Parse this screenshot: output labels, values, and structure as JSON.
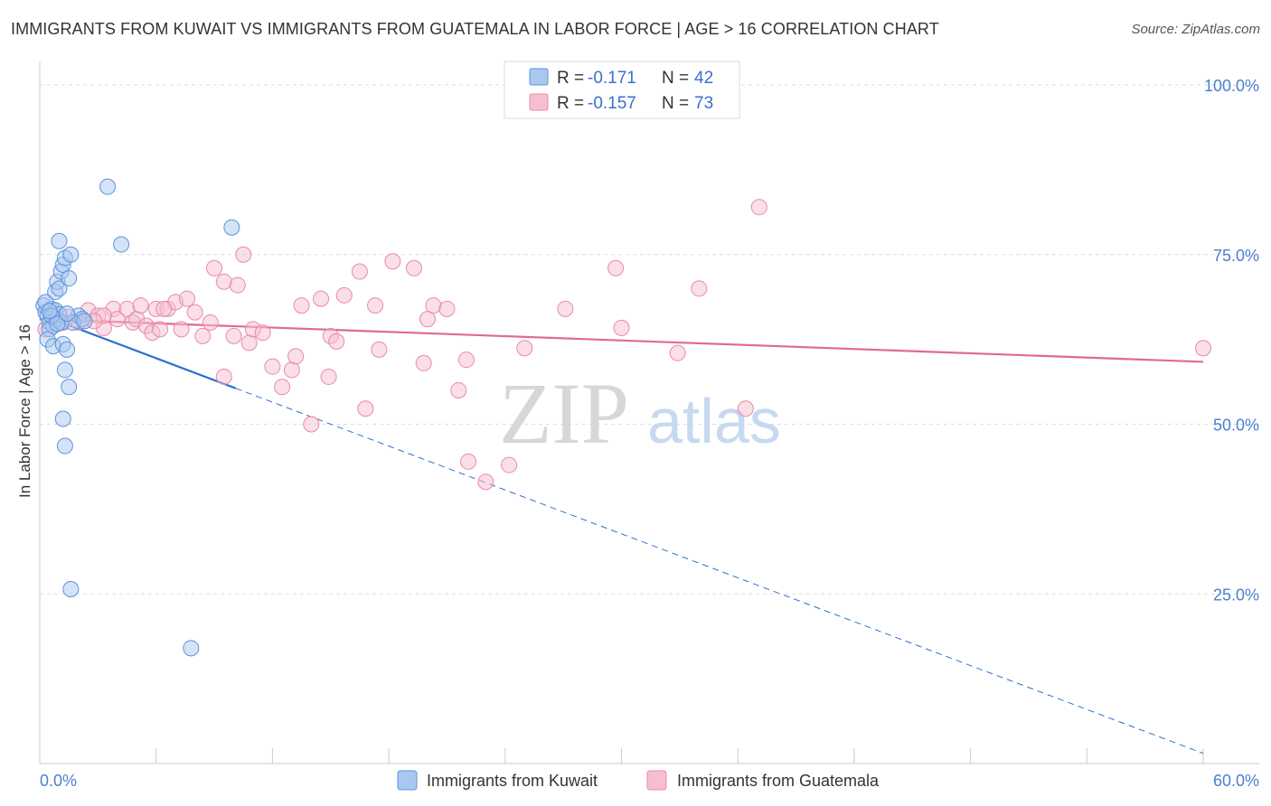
{
  "title": "IMMIGRANTS FROM KUWAIT VS IMMIGRANTS FROM GUATEMALA IN LABOR FORCE | AGE > 16 CORRELATION CHART",
  "source": "Source: ZipAtlas.com",
  "watermark": {
    "zip": "ZIP",
    "atlas": "atlas"
  },
  "colors": {
    "kuwait_fill": "#a9c8f0",
    "kuwait_stroke": "#5b93dc",
    "kuwait_line": "#2e6fd1",
    "guatemala_fill": "#f6bfd0",
    "guatemala_stroke": "#e88aa8",
    "guatemala_line": "#e06a93",
    "tick_text": "#4a7fcf",
    "grid": "#dddddd"
  },
  "legend": {
    "rows": [
      {
        "r_label": "R =",
        "r_value": "-0.171",
        "n_label": "N =",
        "n_value": "42"
      },
      {
        "r_label": "R =",
        "r_value": "-0.157",
        "n_label": "N =",
        "n_value": "73"
      }
    ]
  },
  "chart_data": {
    "type": "scatter",
    "title": "IMMIGRANTS FROM KUWAIT VS IMMIGRANTS FROM GUATEMALA IN LABOR FORCE | AGE > 16 CORRELATION CHART",
    "xlabel": "",
    "ylabel": "In Labor Force | Age > 16",
    "xlim": [
      0,
      60
    ],
    "ylim": [
      0,
      102
    ],
    "x_tick_labels": [
      "0.0%",
      "60.0%"
    ],
    "y_ticks": [
      25,
      50,
      75,
      100
    ],
    "y_tick_labels": [
      "25.0%",
      "50.0%",
      "75.0%",
      "100.0%"
    ],
    "series": [
      {
        "name": "Immigrants from Kuwait",
        "r": -0.171,
        "n": 42,
        "trend": {
          "x0": 0.2,
          "y0": 66.0,
          "x1": 10.1,
          "y1": 55.3,
          "dash_x1": 60.0,
          "dash_y1": 1.5
        },
        "points": [
          [
            0.2,
            67.5
          ],
          [
            0.3,
            66.5
          ],
          [
            0.4,
            66.0
          ],
          [
            0.5,
            65.0
          ],
          [
            0.6,
            67.0
          ],
          [
            0.7,
            64.5
          ],
          [
            0.8,
            66.8
          ],
          [
            0.3,
            68.0
          ],
          [
            0.5,
            64.0
          ],
          [
            0.4,
            62.5
          ],
          [
            0.9,
            65.5
          ],
          [
            1.0,
            66.2
          ],
          [
            0.8,
            69.5
          ],
          [
            0.9,
            71.0
          ],
          [
            1.0,
            70.0
          ],
          [
            1.1,
            72.5
          ],
          [
            1.0,
            77.0
          ],
          [
            1.2,
            73.5
          ],
          [
            1.3,
            74.5
          ],
          [
            1.5,
            71.5
          ],
          [
            1.6,
            75.0
          ],
          [
            0.7,
            61.5
          ],
          [
            1.2,
            61.8
          ],
          [
            1.3,
            58.0
          ],
          [
            1.4,
            61.0
          ],
          [
            1.5,
            55.5
          ],
          [
            1.2,
            50.8
          ],
          [
            1.3,
            46.8
          ],
          [
            1.6,
            25.7
          ],
          [
            2.0,
            66.0
          ],
          [
            2.2,
            65.5
          ],
          [
            3.5,
            85.0
          ],
          [
            4.2,
            76.5
          ],
          [
            9.9,
            79.0
          ],
          [
            7.8,
            17.0
          ],
          [
            1.7,
            65.0
          ],
          [
            1.1,
            65.0
          ],
          [
            0.6,
            66.0
          ],
          [
            0.9,
            64.8
          ],
          [
            1.4,
            66.3
          ],
          [
            0.5,
            66.7
          ],
          [
            2.3,
            65.2
          ]
        ]
      },
      {
        "name": "Immigrants from Guatemala",
        "r": -0.157,
        "n": 73,
        "trend": {
          "x0": 0.0,
          "y0": 65.5,
          "x1": 60.0,
          "y1": 59.2
        },
        "points": [
          [
            0.3,
            64.0
          ],
          [
            0.5,
            65.0
          ],
          [
            0.8,
            65.5
          ],
          [
            1.2,
            65.0
          ],
          [
            1.5,
            65.8
          ],
          [
            2.0,
            65.0
          ],
          [
            2.5,
            66.8
          ],
          [
            3.0,
            66.0
          ],
          [
            3.3,
            64.2
          ],
          [
            3.8,
            67.0
          ],
          [
            4.0,
            65.5
          ],
          [
            4.5,
            67.0
          ],
          [
            4.8,
            65.0
          ],
          [
            5.0,
            65.5
          ],
          [
            5.2,
            67.5
          ],
          [
            5.5,
            64.5
          ],
          [
            5.8,
            63.5
          ],
          [
            6.0,
            67.0
          ],
          [
            6.2,
            64.0
          ],
          [
            6.6,
            67.0
          ],
          [
            7.0,
            68.0
          ],
          [
            7.3,
            64.0
          ],
          [
            7.6,
            68.5
          ],
          [
            8.0,
            66.5
          ],
          [
            8.4,
            63.0
          ],
          [
            8.8,
            65.0
          ],
          [
            9.0,
            73.0
          ],
          [
            9.5,
            71.0
          ],
          [
            10.0,
            63.0
          ],
          [
            10.2,
            70.5
          ],
          [
            10.5,
            75.0
          ],
          [
            10.8,
            62.0
          ],
          [
            11.0,
            64.0
          ],
          [
            11.5,
            63.5
          ],
          [
            12.0,
            58.5
          ],
          [
            12.5,
            55.5
          ],
          [
            13.0,
            58.0
          ],
          [
            13.2,
            60.0
          ],
          [
            13.5,
            67.5
          ],
          [
            14.0,
            50.0
          ],
          [
            14.5,
            68.5
          ],
          [
            14.9,
            57.0
          ],
          [
            15.0,
            63.0
          ],
          [
            15.3,
            62.2
          ],
          [
            15.7,
            69.0
          ],
          [
            16.5,
            72.5
          ],
          [
            16.8,
            52.3
          ],
          [
            17.3,
            67.5
          ],
          [
            17.5,
            61.0
          ],
          [
            18.2,
            74.0
          ],
          [
            19.3,
            73.0
          ],
          [
            19.8,
            59.0
          ],
          [
            20.0,
            65.5
          ],
          [
            20.3,
            67.5
          ],
          [
            21.0,
            67.0
          ],
          [
            21.6,
            55.0
          ],
          [
            22.0,
            59.5
          ],
          [
            22.1,
            44.5
          ],
          [
            23.0,
            41.5
          ],
          [
            24.2,
            44.0
          ],
          [
            25.0,
            61.2
          ],
          [
            27.1,
            67.0
          ],
          [
            29.7,
            73.0
          ],
          [
            30.0,
            64.2
          ],
          [
            32.9,
            60.5
          ],
          [
            34.0,
            70.0
          ],
          [
            36.4,
            52.3
          ],
          [
            37.1,
            82.0
          ],
          [
            60.0,
            61.2
          ],
          [
            3.3,
            66.0
          ],
          [
            6.4,
            67.0
          ],
          [
            9.5,
            57.0
          ],
          [
            2.8,
            65.2
          ]
        ]
      }
    ]
  }
}
